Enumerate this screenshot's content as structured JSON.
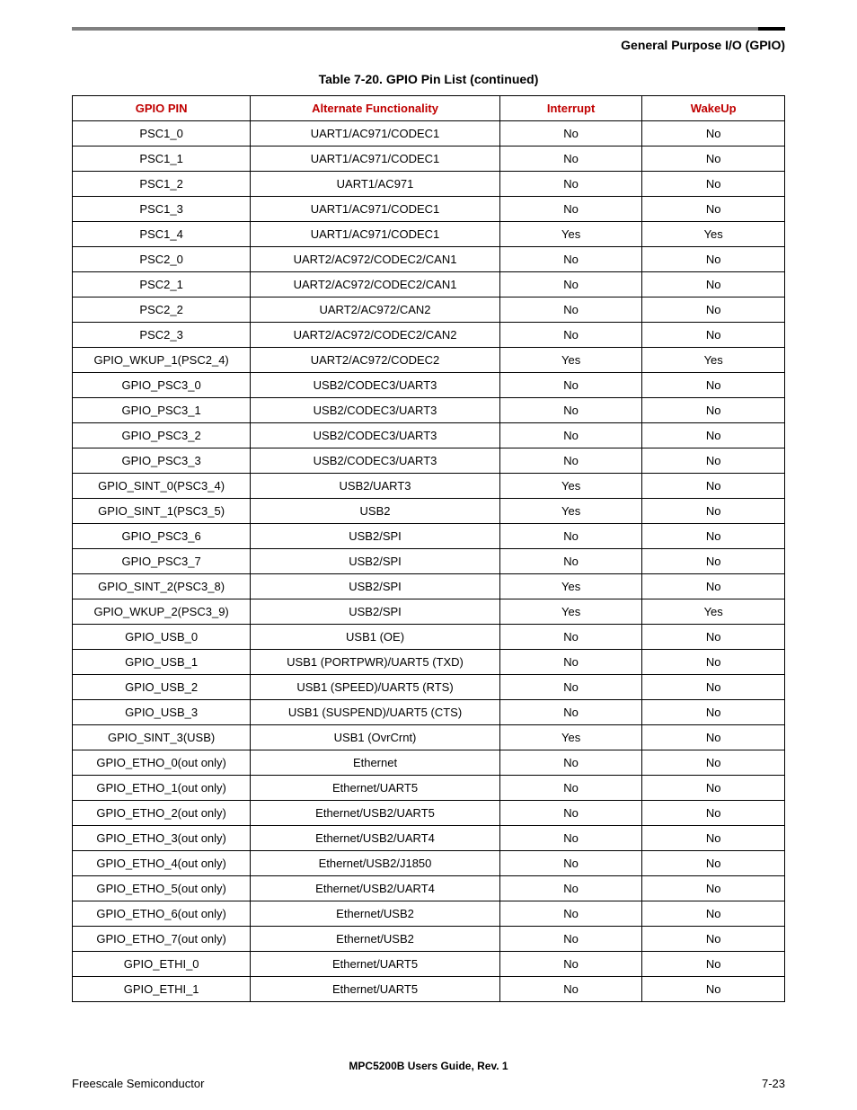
{
  "header": {
    "section_title": "General Purpose I/O (GPIO)"
  },
  "table": {
    "caption": "Table 7-20. GPIO Pin List (continued)",
    "columns": [
      "GPIO PIN",
      "Alternate Functionality",
      "Interrupt",
      "WakeUp"
    ],
    "header_color": "#c00000",
    "border_color": "#000000",
    "rows": [
      [
        "PSC1_0",
        "UART1/AC971/CODEC1",
        "No",
        "No"
      ],
      [
        "PSC1_1",
        "UART1/AC971/CODEC1",
        "No",
        "No"
      ],
      [
        "PSC1_2",
        "UART1/AC971",
        "No",
        "No"
      ],
      [
        "PSC1_3",
        "UART1/AC971/CODEC1",
        "No",
        "No"
      ],
      [
        "PSC1_4",
        "UART1/AC971/CODEC1",
        "Yes",
        "Yes"
      ],
      [
        "PSC2_0",
        "UART2/AC972/CODEC2/CAN1",
        "No",
        "No"
      ],
      [
        "PSC2_1",
        "UART2/AC972/CODEC2/CAN1",
        "No",
        "No"
      ],
      [
        "PSC2_2",
        "UART2/AC972/CAN2",
        "No",
        "No"
      ],
      [
        "PSC2_3",
        "UART2/AC972/CODEC2/CAN2",
        "No",
        "No"
      ],
      [
        "GPIO_WKUP_1(PSC2_4)",
        "UART2/AC972/CODEC2",
        "Yes",
        "Yes"
      ],
      [
        "GPIO_PSC3_0",
        "USB2/CODEC3/UART3",
        "No",
        "No"
      ],
      [
        "GPIO_PSC3_1",
        "USB2/CODEC3/UART3",
        "No",
        "No"
      ],
      [
        "GPIO_PSC3_2",
        "USB2/CODEC3/UART3",
        "No",
        "No"
      ],
      [
        "GPIO_PSC3_3",
        "USB2/CODEC3/UART3",
        "No",
        "No"
      ],
      [
        "GPIO_SINT_0(PSC3_4)",
        "USB2/UART3",
        "Yes",
        "No"
      ],
      [
        "GPIO_SINT_1(PSC3_5)",
        "USB2",
        "Yes",
        "No"
      ],
      [
        "GPIO_PSC3_6",
        "USB2/SPI",
        "No",
        "No"
      ],
      [
        "GPIO_PSC3_7",
        "USB2/SPI",
        "No",
        "No"
      ],
      [
        "GPIO_SINT_2(PSC3_8)",
        "USB2/SPI",
        "Yes",
        "No"
      ],
      [
        "GPIO_WKUP_2(PSC3_9)",
        "USB2/SPI",
        "Yes",
        "Yes"
      ],
      [
        "GPIO_USB_0",
        "USB1 (OE)",
        "No",
        "No"
      ],
      [
        "GPIO_USB_1",
        "USB1 (PORTPWR)/UART5 (TXD)",
        "No",
        "No"
      ],
      [
        "GPIO_USB_2",
        "USB1 (SPEED)/UART5 (RTS)",
        "No",
        "No"
      ],
      [
        "GPIO_USB_3",
        "USB1 (SUSPEND)/UART5 (CTS)",
        "No",
        "No"
      ],
      [
        "GPIO_SINT_3(USB)",
        "USB1 (OvrCrnt)",
        "Yes",
        "No"
      ],
      [
        "GPIO_ETHO_0(out only)",
        "Ethernet",
        "No",
        "No"
      ],
      [
        "GPIO_ETHO_1(out only)",
        "Ethernet/UART5",
        "No",
        "No"
      ],
      [
        "GPIO_ETHO_2(out only)",
        "Ethernet/USB2/UART5",
        "No",
        "No"
      ],
      [
        "GPIO_ETHO_3(out only)",
        "Ethernet/USB2/UART4",
        "No",
        "No"
      ],
      [
        "GPIO_ETHO_4(out only)",
        "Ethernet/USB2/J1850",
        "No",
        "No"
      ],
      [
        "GPIO_ETHO_5(out only)",
        "Ethernet/USB2/UART4",
        "No",
        "No"
      ],
      [
        "GPIO_ETHO_6(out only)",
        "Ethernet/USB2",
        "No",
        "No"
      ],
      [
        "GPIO_ETHO_7(out only)",
        "Ethernet/USB2",
        "No",
        "No"
      ],
      [
        "GPIO_ETHI_0",
        "Ethernet/UART5",
        "No",
        "No"
      ],
      [
        "GPIO_ETHI_1",
        "Ethernet/UART5",
        "No",
        "No"
      ]
    ]
  },
  "footer": {
    "guide": "MPC5200B Users Guide, Rev. 1",
    "left": "Freescale Semiconductor",
    "right": "7-23"
  },
  "top_rule": {
    "base_color": "#808080",
    "accent_color": "#000000"
  }
}
